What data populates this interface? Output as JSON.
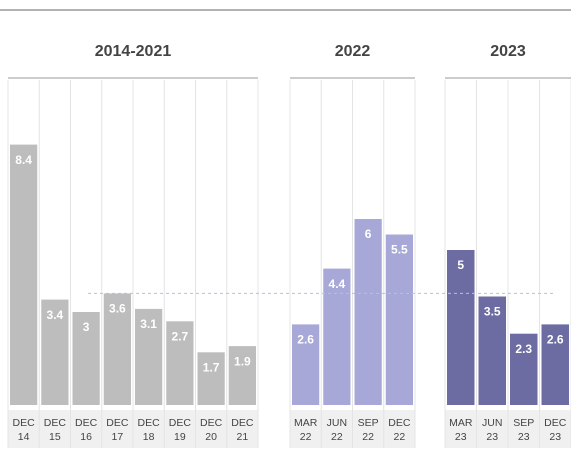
{
  "chart_data": [
    {
      "type": "bar",
      "title": "2014-2021",
      "color": "#bdbdbd",
      "categories": [
        [
          "DEC",
          "14"
        ],
        [
          "DEC",
          "15"
        ],
        [
          "DEC",
          "16"
        ],
        [
          "DEC",
          "17"
        ],
        [
          "DEC",
          "18"
        ],
        [
          "DEC",
          "19"
        ],
        [
          "DEC",
          "20"
        ],
        [
          "DEC",
          "21"
        ]
      ],
      "values": [
        8.4,
        3.4,
        3.0,
        3.6,
        3.1,
        2.7,
        1.7,
        1.9
      ],
      "ylim": [
        0,
        10
      ],
      "reference_line": 3.6
    },
    {
      "type": "bar",
      "title": "2022",
      "color": "#a8a8d8",
      "categories": [
        [
          "MAR",
          "22"
        ],
        [
          "JUN",
          "22"
        ],
        [
          "SEP",
          "22"
        ],
        [
          "DEC",
          "22"
        ]
      ],
      "values": [
        2.6,
        4.4,
        6.0,
        5.5
      ],
      "ylim": [
        0,
        10
      ]
    },
    {
      "type": "bar",
      "title": "2023",
      "color": "#6c6ca3",
      "categories": [
        [
          "MAR",
          "23"
        ],
        [
          "JUN",
          "23"
        ],
        [
          "SEP",
          "23"
        ],
        [
          "DEC",
          "23"
        ]
      ],
      "values": [
        5.0,
        3.5,
        2.3,
        2.6
      ],
      "ylim": [
        0,
        10
      ]
    }
  ]
}
